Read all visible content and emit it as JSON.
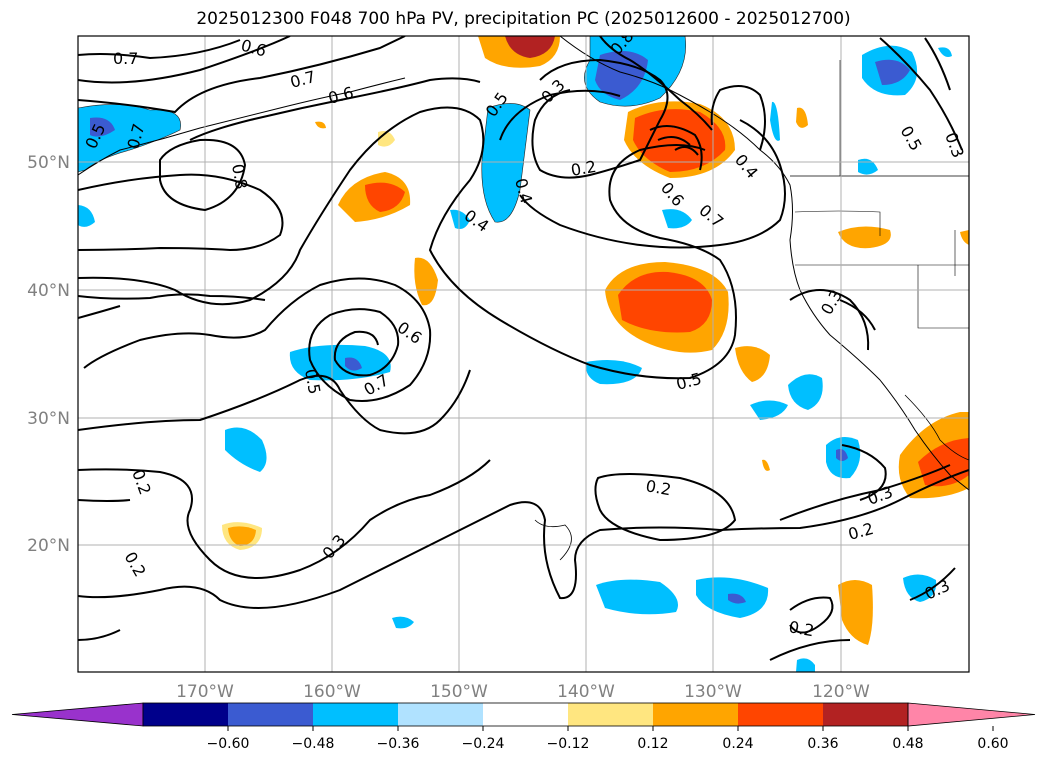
{
  "title": "2025012300 F048 700 hPa PV, precipitation PC (2025012600 - 2025012700)",
  "map": {
    "lat_labels": [
      "50°N",
      "40°N",
      "30°N",
      "20°N"
    ],
    "lon_labels": [
      "170°W",
      "160°W",
      "150°W",
      "140°W",
      "130°W",
      "120°W"
    ],
    "grid": true
  },
  "contour_labels": [
    "0.7",
    "0.6",
    "0.7",
    "0.6",
    "0.8",
    "0.5",
    "0.7",
    "0.5",
    "0.3",
    "0.8",
    "0.2",
    "0.4",
    "0.4",
    "0.5",
    "0.6",
    "0.7",
    "0.3",
    "0.4",
    "0.6",
    "0.7",
    "0.5",
    "0.5",
    "0.3",
    "0.3",
    "0.2",
    "0.3",
    "0.2",
    "0.2",
    "0.2",
    "0.3",
    "0.2"
  ],
  "colorbar": {
    "ticks": [
      "−0.60",
      "−0.48",
      "−0.36",
      "−0.24",
      "−0.12",
      "0.12",
      "0.24",
      "0.36",
      "0.48",
      "0.60"
    ],
    "colors": [
      "#9932cc",
      "#00008b",
      "#3b5bd1",
      "#00bfff",
      "#b0e2ff",
      "#ffffff",
      "#ffe680",
      "#ffa500",
      "#ff4500",
      "#b22222",
      "#ff85a8"
    ]
  }
}
